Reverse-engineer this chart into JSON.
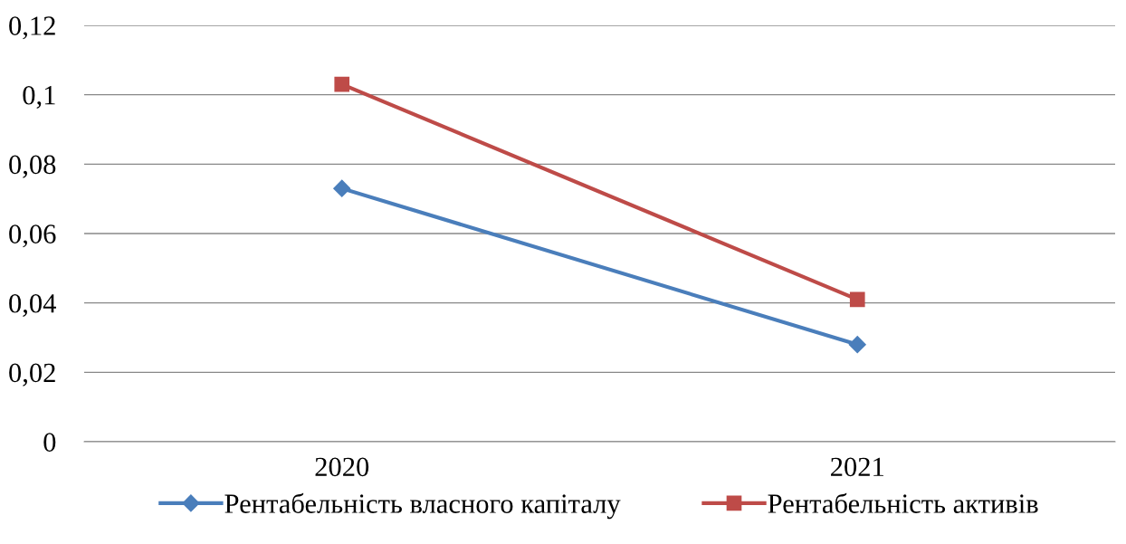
{
  "chart_data": {
    "type": "line",
    "categories": [
      "2020",
      "2021"
    ],
    "series": [
      {
        "name": "Рентабельність власного капіталу",
        "color": "#4a7ebb",
        "marker": "diamond",
        "values": [
          0.073,
          0.028
        ]
      },
      {
        "name": "Рентабельність активів",
        "color": "#be4b48",
        "marker": "square",
        "values": [
          0.103,
          0.041
        ]
      }
    ],
    "ylim": [
      0,
      0.12
    ],
    "yticks": [
      {
        "value": 0,
        "label": "0"
      },
      {
        "value": 0.02,
        "label": "0,02"
      },
      {
        "value": 0.04,
        "label": "0,04"
      },
      {
        "value": 0.06,
        "label": "0,06"
      },
      {
        "value": 0.08,
        "label": "0,08"
      },
      {
        "value": 0.1,
        "label": "0,1"
      },
      {
        "value": 0.12,
        "label": "0,12"
      }
    ],
    "grid": "y",
    "legend": "bottom",
    "line_style": "solid"
  }
}
